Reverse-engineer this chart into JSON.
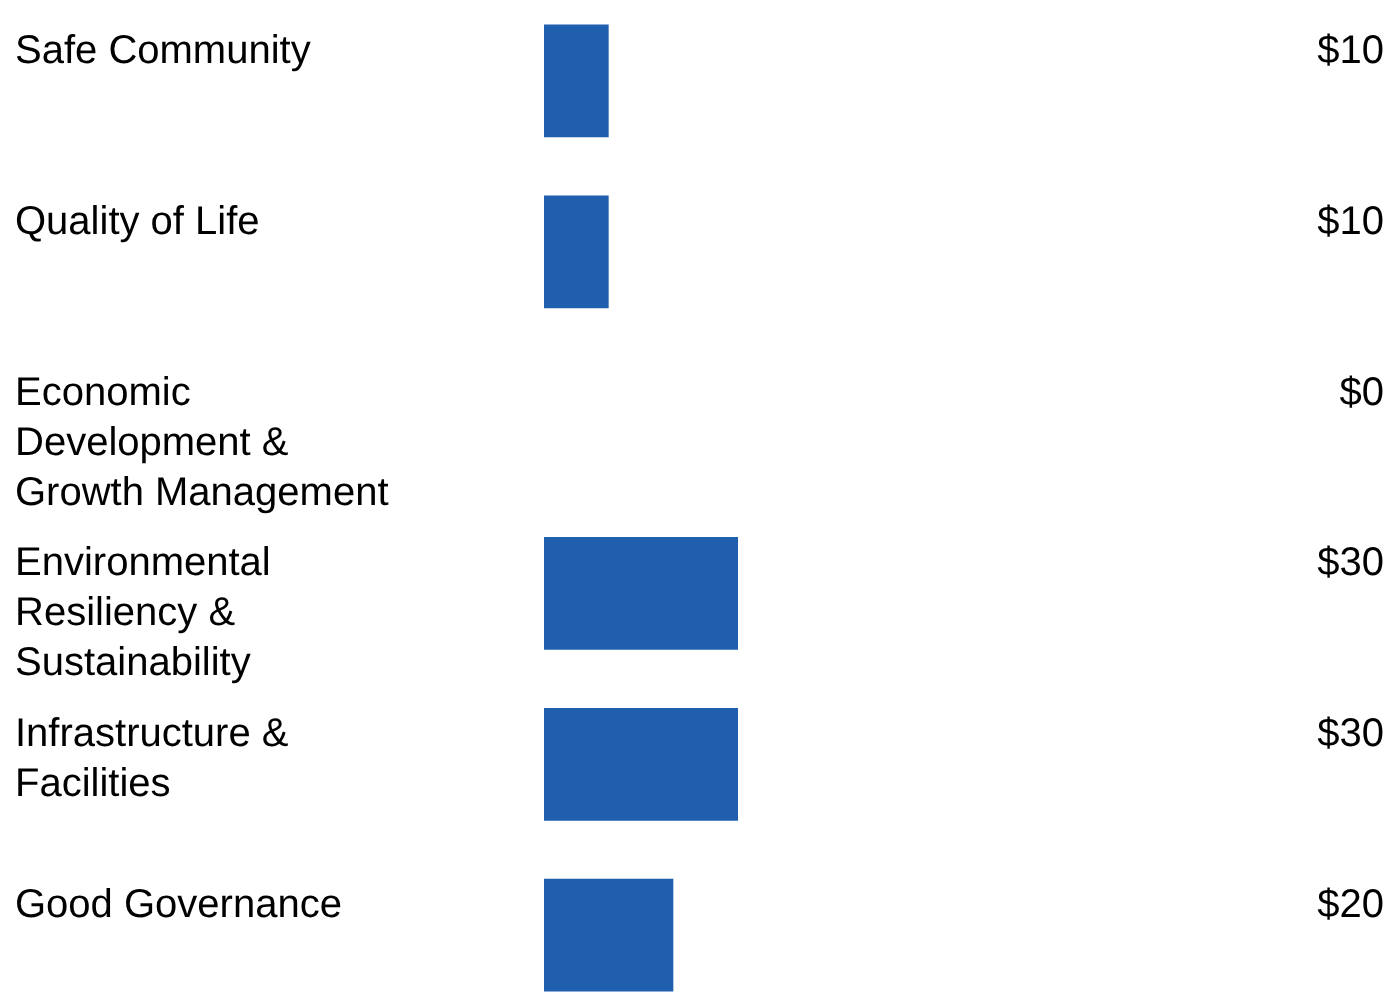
{
  "chart_data": {
    "type": "bar",
    "orientation": "horizontal",
    "categories": [
      "Safe Community",
      "Quality of Life",
      "Economic Development & Growth Management",
      "Environmental Resiliency & Sustainability",
      "Infrastructure & Facilities",
      "Good Governance"
    ],
    "values": [
      10,
      10,
      0,
      30,
      30,
      20
    ],
    "value_labels": [
      "$10",
      "$10",
      "$0",
      "$30",
      "$30",
      "$20"
    ],
    "color": "#1f5fad",
    "grid": false
  }
}
